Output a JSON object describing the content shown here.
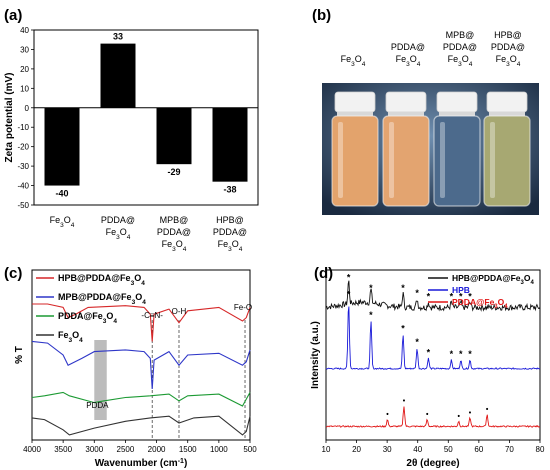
{
  "panels": {
    "a": "(a)",
    "b": "(b)",
    "c": "(c)",
    "d": "(d)"
  },
  "colors": {
    "bar": "#000000",
    "ftir_hpb_pdda": "#d62728",
    "ftir_mpb_pdda": "#2f37c8",
    "ftir_pdda": "#1c9a33",
    "ftir_fe3o4": "#333333",
    "xrd_hpb_pdda": "#111111",
    "xrd_hpb": "#1818d8",
    "xrd_pdda": "#e01515",
    "photo_bg": "#1a2a40"
  },
  "photo": {
    "vial_labels": [
      [
        "Fe",
        "3",
        "O",
        "4"
      ],
      [
        "PDDA@",
        "Fe",
        "3",
        "O",
        "4"
      ],
      [
        "MPB@",
        "PDDA@",
        "Fe",
        "3",
        "O",
        "4"
      ],
      [
        "HPB@",
        "PDDA@",
        "Fe",
        "3",
        "O",
        "4"
      ]
    ],
    "vial_colors": [
      "#e3a36c",
      "#e3a470",
      "#4c6a8c",
      "#a7a872"
    ]
  },
  "chart_data": [
    {
      "panel": "(a)",
      "type": "bar",
      "ylabel": "Zeta potential (mV)",
      "ylim": [
        -50,
        40
      ],
      "yticks": [
        -50,
        -40,
        -30,
        -20,
        -10,
        0,
        10,
        20,
        30,
        40
      ],
      "categories": [
        "Fe3O4",
        "PDDA@Fe3O4",
        "MPB@PDDA@Fe3O4",
        "HPB@PDDA@Fe3O4"
      ],
      "values": [
        -40,
        33,
        -29,
        -38
      ],
      "data_labels": [
        "-40",
        "33",
        "-29",
        "-38"
      ],
      "grid": false
    },
    {
      "panel": "(c)",
      "type": "line",
      "xlabel": "Wavenumber (cm-1)",
      "ylabel": "% T",
      "xlim": [
        4000,
        500
      ],
      "xticks": [
        4000,
        3500,
        3000,
        2500,
        2000,
        1500,
        1000,
        500
      ],
      "legend_position": "top-left",
      "series": [
        {
          "name": "HPB@PDDA@Fe3O4",
          "color": "#d62728",
          "points": [
            [
              4000,
              0.8
            ],
            [
              3750,
              0.8
            ],
            [
              3500,
              0.78
            ],
            [
              3420,
              0.72
            ],
            [
              3300,
              0.74
            ],
            [
              3100,
              0.78
            ],
            [
              2500,
              0.79
            ],
            [
              2200,
              0.78
            ],
            [
              2100,
              0.74
            ],
            [
              2070,
              0.58
            ],
            [
              2040,
              0.74
            ],
            [
              1800,
              0.77
            ],
            [
              1640,
              0.69
            ],
            [
              1500,
              0.76
            ],
            [
              1000,
              0.78
            ],
            [
              620,
              0.7
            ],
            [
              560,
              0.72
            ],
            [
              500,
              0.78
            ]
          ]
        },
        {
          "name": "MPB@PDDA@Fe3O4",
          "color": "#2f37c8",
          "points": [
            [
              4000,
              0.58
            ],
            [
              3750,
              0.57
            ],
            [
              3500,
              0.5
            ],
            [
              3420,
              0.44
            ],
            [
              3200,
              0.48
            ],
            [
              3000,
              0.52
            ],
            [
              2500,
              0.53
            ],
            [
              2200,
              0.52
            ],
            [
              2100,
              0.48
            ],
            [
              2070,
              0.3
            ],
            [
              2040,
              0.47
            ],
            [
              1800,
              0.52
            ],
            [
              1640,
              0.44
            ],
            [
              1500,
              0.5
            ],
            [
              1000,
              0.51
            ],
            [
              620,
              0.44
            ],
            [
              560,
              0.46
            ],
            [
              500,
              0.53
            ]
          ]
        },
        {
          "name": "PDDA@Fe3O4",
          "color": "#1c9a33",
          "points": [
            [
              4000,
              0.25
            ],
            [
              3800,
              0.26
            ],
            [
              3500,
              0.28
            ],
            [
              3400,
              0.26
            ],
            [
              3000,
              0.22
            ],
            [
              2850,
              0.23
            ],
            [
              2500,
              0.25
            ],
            [
              2100,
              0.26
            ],
            [
              1800,
              0.27
            ],
            [
              1640,
              0.23
            ],
            [
              1500,
              0.26
            ],
            [
              1000,
              0.27
            ],
            [
              620,
              0.2
            ],
            [
              500,
              0.28
            ]
          ]
        },
        {
          "name": "Fe3O4",
          "color": "#333333",
          "points": [
            [
              4000,
              0.13
            ],
            [
              3800,
              0.12
            ],
            [
              3500,
              0.06
            ],
            [
              3400,
              0.03
            ],
            [
              3000,
              0.07
            ],
            [
              2500,
              0.11
            ],
            [
              2100,
              0.13
            ],
            [
              1800,
              0.14
            ],
            [
              1640,
              0.1
            ],
            [
              1400,
              0.13
            ],
            [
              1000,
              0.14
            ],
            [
              620,
              0.03
            ],
            [
              560,
              0.05
            ],
            [
              500,
              0.14
            ]
          ]
        }
      ],
      "annotations": [
        {
          "text": "-C≡N-",
          "x": 2070
        },
        {
          "text": "O-H",
          "x": 1640
        },
        {
          "text": "Fe-O",
          "x": 580
        },
        {
          "text": "PDDA",
          "x": 2950
        }
      ],
      "shaded_region": [
        3000,
        2800
      ]
    },
    {
      "panel": "(d)",
      "type": "line",
      "xlabel": "2θ (degree)",
      "ylabel": "Intensity (a.u.)",
      "xlim": [
        10,
        80
      ],
      "xticks": [
        10,
        20,
        30,
        40,
        50,
        60,
        70,
        80
      ],
      "legend_position": "top-right",
      "series": [
        {
          "name": "HPB@PDDA@Fe3O4",
          "color": "#111111",
          "baseline": 0.78,
          "peaks": [
            [
              17.4,
              0.14
            ],
            [
              24.7,
              0.08
            ],
            [
              35.2,
              0.08
            ],
            [
              39.8,
              0.05
            ],
            [
              43.5,
              0.03
            ],
            [
              51.0,
              0.03
            ],
            [
              54.1,
              0.03
            ],
            [
              57.1,
              0.03
            ]
          ]
        },
        {
          "name": "HPB",
          "color": "#1818d8",
          "baseline": 0.42,
          "peaks": [
            [
              17.4,
              0.4
            ],
            [
              24.7,
              0.28
            ],
            [
              35.2,
              0.2
            ],
            [
              39.8,
              0.12
            ],
            [
              43.5,
              0.06
            ],
            [
              51.0,
              0.05
            ],
            [
              54.1,
              0.05
            ],
            [
              57.1,
              0.05
            ]
          ]
        },
        {
          "name": "PDDA@Fe3O4",
          "color": "#e01515",
          "baseline": 0.08,
          "peaks": [
            [
              30.1,
              0.04
            ],
            [
              35.5,
              0.12
            ],
            [
              43.1,
              0.04
            ],
            [
              53.4,
              0.03
            ],
            [
              57.1,
              0.05
            ],
            [
              62.7,
              0.07
            ]
          ]
        }
      ]
    }
  ]
}
